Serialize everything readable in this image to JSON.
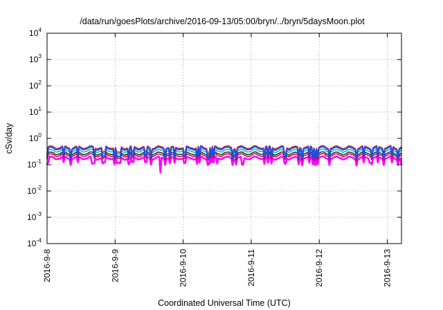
{
  "chart_data": {
    "type": "line",
    "title": "/data/run/goesPlots/archive/2016-09-13/05:00/bryn/../bryn/5daysMoon.plot",
    "xlabel": "Coordinated Universal Time (UTC)",
    "ylabel": "cSv/day",
    "yscale": "log",
    "ylim": [
      0.0001,
      10000
    ],
    "xlim": [
      "2016-09-08T00:00",
      "2016-09-13T05:00"
    ],
    "grid": true,
    "legend": "none",
    "x_ticks": [
      "2016-9-8",
      "2016-9-9",
      "2016-9-10",
      "2016-9-11",
      "2016-9-12",
      "2016-9-13"
    ],
    "y_ticks": [
      {
        "base": "10",
        "exp": "-4"
      },
      {
        "base": "10",
        "exp": "-3"
      },
      {
        "base": "10",
        "exp": "-2"
      },
      {
        "base": "10",
        "exp": "-1"
      },
      {
        "base": "10",
        "exp": "0"
      },
      {
        "base": "10",
        "exp": "1"
      },
      {
        "base": "10",
        "exp": "2"
      },
      {
        "base": "10",
        "exp": "3"
      },
      {
        "base": "10",
        "exp": "4"
      }
    ],
    "series": [
      {
        "color": "#ff00ff",
        "level": 0.18,
        "spike_depth": 0.6,
        "lw": 2.6,
        "dips": [
          [
            "2016-09-08T00:10",
            0.12
          ],
          [
            "2016-09-08T16:00",
            0.11
          ],
          [
            "2016-09-09T05:00",
            0.12
          ],
          [
            "2016-09-09T16:00",
            0.05
          ],
          [
            "2016-09-10T12:00",
            0.11
          ],
          [
            "2016-09-10T21:00",
            0.1
          ],
          [
            "2016-09-11T18:00",
            0.12
          ],
          [
            "2016-09-12T18:00",
            0.12
          ],
          [
            "2016-09-13T05:00",
            0.1
          ]
        ]
      },
      {
        "color": "#c01040",
        "level": 0.23,
        "spike_depth": 0.7,
        "lw": 1.6,
        "dips": []
      },
      {
        "color": "#303030",
        "level": 0.27,
        "spike_depth": 0.7,
        "lw": 1.6,
        "dips": []
      },
      {
        "color": "#20c0c0",
        "level": 0.34,
        "spike_depth": 0.7,
        "lw": 1.8,
        "dips": []
      },
      {
        "color": "#e03030",
        "level": 0.46,
        "spike_depth": 0.6,
        "lw": 1.8,
        "dips": []
      },
      {
        "color": "#2050e0",
        "level": 0.42,
        "spike_depth": 0.45,
        "lw": 2.2,
        "dips": []
      }
    ]
  }
}
